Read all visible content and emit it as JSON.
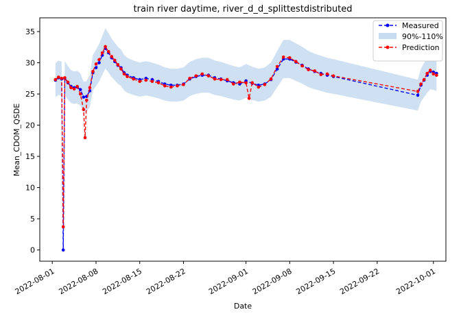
{
  "chart_data": {
    "type": "line",
    "title": "train river daytime, river_d_d_splittestdistributed",
    "xlabel": "Date",
    "ylabel": "Mean_CDOM_QSDE",
    "xlim": [
      "2022-07-30",
      "2022-10-03"
    ],
    "ylim": [
      -1.8,
      37.2
    ],
    "grid": false,
    "legend_position": "top-right",
    "x_ticks": [
      "2022-08-01",
      "2022-08-08",
      "2022-08-15",
      "2022-08-22",
      "2022-09-01",
      "2022-09-08",
      "2022-09-15",
      "2022-09-22",
      "2022-10-01"
    ],
    "y_ticks": [
      0,
      5,
      10,
      15,
      20,
      25,
      30,
      35
    ],
    "band": {
      "name": "90%-110%",
      "color": "#c6dbef",
      "lower_factor": 0.9,
      "upper_factor": 1.1
    },
    "series": [
      {
        "name": "Measured",
        "color": "#0000ff",
        "style": "dashed",
        "marker": "circle",
        "points": [
          [
            "2022-08-01 12:00",
            27.2
          ],
          [
            "2022-08-02 00:00",
            27.6
          ],
          [
            "2022-08-02 12:00",
            27.4
          ],
          [
            "2022-08-02 18:00",
            0.0
          ],
          [
            "2022-08-03 00:00",
            27.5
          ],
          [
            "2022-08-03 12:00",
            26.8
          ],
          [
            "2022-08-04 00:00",
            26.2
          ],
          [
            "2022-08-04 12:00",
            26.0
          ],
          [
            "2022-08-05 00:00",
            26.1
          ],
          [
            "2022-08-05 12:00",
            25.7
          ],
          [
            "2022-08-06 00:00",
            24.5
          ],
          [
            "2022-08-06 12:00",
            24.6
          ],
          [
            "2022-08-07 00:00",
            25.5
          ],
          [
            "2022-08-07 12:00",
            28.4
          ],
          [
            "2022-08-08 00:00",
            29.2
          ],
          [
            "2022-08-08 12:00",
            30.0
          ],
          [
            "2022-08-09 00:00",
            31.2
          ],
          [
            "2022-08-09 12:00",
            32.3
          ],
          [
            "2022-08-10 00:00",
            31.6
          ],
          [
            "2022-08-10 12:00",
            30.8
          ],
          [
            "2022-08-11 00:00",
            30.2
          ],
          [
            "2022-08-11 12:00",
            29.6
          ],
          [
            "2022-08-12 00:00",
            29.2
          ],
          [
            "2022-08-12 12:00",
            28.4
          ],
          [
            "2022-08-13 00:00",
            28.0
          ],
          [
            "2022-08-14 00:00",
            27.6
          ],
          [
            "2022-08-15 00:00",
            27.3
          ],
          [
            "2022-08-16 00:00",
            27.5
          ],
          [
            "2022-08-17 00:00",
            27.3
          ],
          [
            "2022-08-18 00:00",
            27.0
          ],
          [
            "2022-08-19 00:00",
            26.6
          ],
          [
            "2022-08-20 00:00",
            26.4
          ],
          [
            "2022-08-21 00:00",
            26.4
          ],
          [
            "2022-08-22 00:00",
            26.6
          ],
          [
            "2022-08-23 00:00",
            27.4
          ],
          [
            "2022-08-24 00:00",
            27.8
          ],
          [
            "2022-08-25 00:00",
            28.0
          ],
          [
            "2022-08-26 00:00",
            28.0
          ],
          [
            "2022-08-27 00:00",
            27.6
          ],
          [
            "2022-08-28 00:00",
            27.4
          ],
          [
            "2022-08-29 00:00",
            27.1
          ],
          [
            "2022-08-30 00:00",
            26.8
          ],
          [
            "2022-08-31 00:00",
            26.6
          ],
          [
            "2022-09-01 00:00",
            27.1
          ],
          [
            "2022-09-02 00:00",
            26.7
          ],
          [
            "2022-09-03 00:00",
            26.4
          ],
          [
            "2022-09-04 00:00",
            26.6
          ],
          [
            "2022-09-05 00:00",
            27.3
          ],
          [
            "2022-09-06 00:00",
            29.0
          ],
          [
            "2022-09-07 00:00",
            30.6
          ],
          [
            "2022-09-08 00:00",
            30.6
          ],
          [
            "2022-09-09 00:00",
            30.1
          ],
          [
            "2022-09-10 00:00",
            29.6
          ],
          [
            "2022-09-11 00:00",
            29.0
          ],
          [
            "2022-09-12 00:00",
            28.6
          ],
          [
            "2022-09-13 00:00",
            28.3
          ],
          [
            "2022-09-14 00:00",
            28.0
          ],
          [
            "2022-09-15 00:00",
            27.8
          ],
          [
            "2022-09-28 12:00",
            24.8
          ],
          [
            "2022-09-29 00:00",
            26.4
          ],
          [
            "2022-09-29 12:00",
            27.2
          ],
          [
            "2022-09-30 00:00",
            28.0
          ],
          [
            "2022-09-30 12:00",
            28.6
          ],
          [
            "2022-10-01 00:00",
            28.5
          ],
          [
            "2022-10-01 12:00",
            28.3
          ]
        ]
      },
      {
        "name": "Prediction",
        "color": "#ff0000",
        "style": "dashed",
        "marker": "circle",
        "points": [
          [
            "2022-08-01 12:00",
            27.3
          ],
          [
            "2022-08-02 00:00",
            27.7
          ],
          [
            "2022-08-02 12:00",
            27.5
          ],
          [
            "2022-08-02 18:00",
            3.7
          ],
          [
            "2022-08-03 00:00",
            27.6
          ],
          [
            "2022-08-03 12:00",
            26.9
          ],
          [
            "2022-08-04 00:00",
            26.0
          ],
          [
            "2022-08-04 12:00",
            25.8
          ],
          [
            "2022-08-05 00:00",
            26.2
          ],
          [
            "2022-08-05 12:00",
            25.0
          ],
          [
            "2022-08-06 00:00",
            22.5
          ],
          [
            "2022-08-06 06:00",
            18.0
          ],
          [
            "2022-08-06 12:00",
            24.0
          ],
          [
            "2022-08-07 00:00",
            26.0
          ],
          [
            "2022-08-07 12:00",
            28.6
          ],
          [
            "2022-08-08 00:00",
            29.8
          ],
          [
            "2022-08-08 12:00",
            30.5
          ],
          [
            "2022-08-09 00:00",
            31.6
          ],
          [
            "2022-08-09 12:00",
            32.6
          ],
          [
            "2022-08-10 00:00",
            31.8
          ],
          [
            "2022-08-10 12:00",
            31.0
          ],
          [
            "2022-08-11 00:00",
            30.4
          ],
          [
            "2022-08-11 12:00",
            29.7
          ],
          [
            "2022-08-12 00:00",
            29.0
          ],
          [
            "2022-08-12 12:00",
            28.2
          ],
          [
            "2022-08-13 00:00",
            27.8
          ],
          [
            "2022-08-14 00:00",
            27.4
          ],
          [
            "2022-08-15 00:00",
            27.0
          ],
          [
            "2022-08-16 00:00",
            27.2
          ],
          [
            "2022-08-17 00:00",
            27.0
          ],
          [
            "2022-08-18 00:00",
            26.8
          ],
          [
            "2022-08-19 00:00",
            26.3
          ],
          [
            "2022-08-20 00:00",
            26.1
          ],
          [
            "2022-08-21 00:00",
            26.3
          ],
          [
            "2022-08-22 00:00",
            26.5
          ],
          [
            "2022-08-23 00:00",
            27.5
          ],
          [
            "2022-08-24 00:00",
            27.9
          ],
          [
            "2022-08-25 00:00",
            28.2
          ],
          [
            "2022-08-26 00:00",
            27.9
          ],
          [
            "2022-08-27 00:00",
            27.4
          ],
          [
            "2022-08-28 00:00",
            27.3
          ],
          [
            "2022-08-29 00:00",
            27.3
          ],
          [
            "2022-08-30 00:00",
            26.6
          ],
          [
            "2022-08-31 00:00",
            26.9
          ],
          [
            "2022-09-01 00:00",
            26.8
          ],
          [
            "2022-09-01 12:00",
            24.3
          ],
          [
            "2022-09-02 00:00",
            26.8
          ],
          [
            "2022-09-03 00:00",
            26.1
          ],
          [
            "2022-09-04 00:00",
            26.5
          ],
          [
            "2022-09-05 00:00",
            27.4
          ],
          [
            "2022-09-06 00:00",
            29.4
          ],
          [
            "2022-09-07 00:00",
            30.9
          ],
          [
            "2022-09-08 00:00",
            30.8
          ],
          [
            "2022-09-09 00:00",
            30.2
          ],
          [
            "2022-09-10 00:00",
            29.5
          ],
          [
            "2022-09-11 00:00",
            28.9
          ],
          [
            "2022-09-12 00:00",
            28.7
          ],
          [
            "2022-09-13 00:00",
            28.1
          ],
          [
            "2022-09-14 00:00",
            28.2
          ],
          [
            "2022-09-15 00:00",
            27.9
          ],
          [
            "2022-09-28 12:00",
            25.4
          ],
          [
            "2022-09-29 00:00",
            26.6
          ],
          [
            "2022-09-29 12:00",
            27.3
          ],
          [
            "2022-09-30 00:00",
            28.3
          ],
          [
            "2022-09-30 12:00",
            28.8
          ],
          [
            "2022-10-01 00:00",
            28.2
          ],
          [
            "2022-10-01 12:00",
            28.0
          ]
        ]
      }
    ]
  }
}
